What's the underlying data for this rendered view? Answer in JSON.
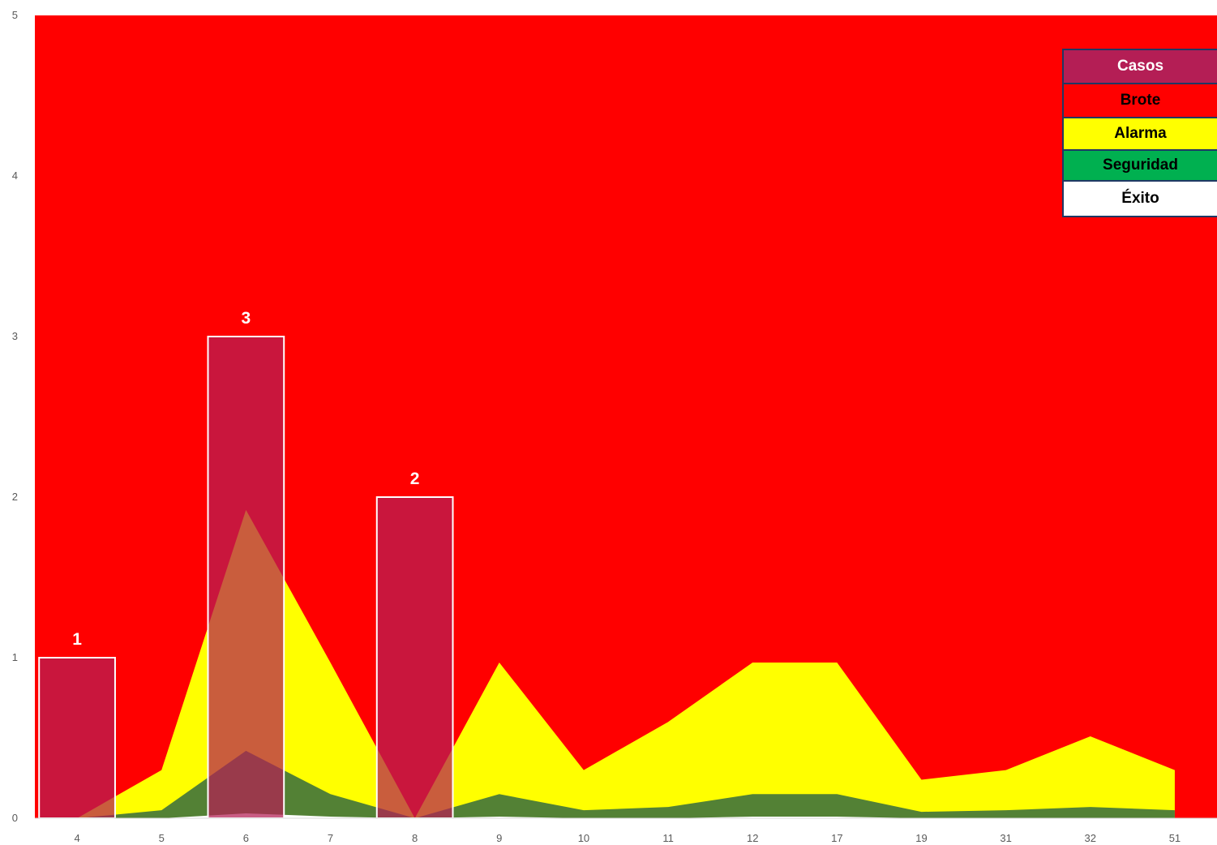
{
  "chart_data": {
    "type": "area",
    "categories": [
      "4",
      "5",
      "6",
      "7",
      "8",
      "9",
      "10",
      "11",
      "12",
      "17",
      "19",
      "31",
      "32",
      "51"
    ],
    "ylim": [
      0,
      5
    ],
    "yticks": [
      "0",
      "1",
      "2",
      "3",
      "4",
      "5"
    ],
    "background_band": {
      "name": "Brote",
      "color": "#ff0000"
    },
    "areas": [
      {
        "name": "Alarma",
        "color": "#ffff00",
        "values": [
          0,
          0.3,
          1.92,
          0.97,
          0,
          0.97,
          0.3,
          0.6,
          0.97,
          0.97,
          0.24,
          0.3,
          0.51,
          0.3
        ]
      },
      {
        "name": "Seguridad",
        "color": "#538135",
        "values": [
          0,
          0.05,
          0.42,
          0.15,
          0,
          0.15,
          0.05,
          0.07,
          0.15,
          0.15,
          0.04,
          0.05,
          0.07,
          0.05
        ]
      },
      {
        "name": "Éxito",
        "color": "#ffffff",
        "values": [
          0,
          0,
          0.03,
          0.01,
          0,
          0.01,
          0,
          0,
          0.01,
          0.01,
          0,
          0,
          0,
          0
        ]
      }
    ],
    "bars": {
      "name": "Casos",
      "color": "#b41e55",
      "values": [
        1,
        null,
        3,
        null,
        2,
        null,
        null,
        null,
        null,
        null,
        null,
        null,
        null,
        null
      ]
    },
    "legend": [
      {
        "label": "Casos",
        "bg": "#b41e55",
        "fg": "#ffffff"
      },
      {
        "label": "Brote",
        "bg": "#ff0000",
        "fg": "#000000"
      },
      {
        "label": "Alarma",
        "bg": "#ffff00",
        "fg": "#000000"
      },
      {
        "label": "Seguridad",
        "bg": "#00b050",
        "fg": "#000000"
      },
      {
        "label": "Éxito",
        "bg": "#ffffff",
        "fg": "#000000"
      }
    ],
    "legend_position": "top-right"
  }
}
